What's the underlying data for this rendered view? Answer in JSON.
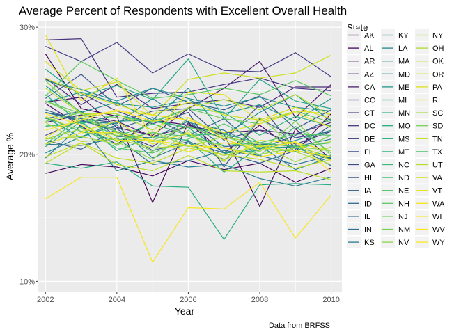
{
  "chart_data": {
    "type": "line",
    "title": "Average Percent of Respondents with Excellent Overall Health",
    "xlabel": "Year",
    "ylabel": "Average %",
    "caption": "Data from BRFSS",
    "x": [
      2002,
      2003,
      2004,
      2005,
      2006,
      2007,
      2008,
      2009,
      2010
    ],
    "xlim": [
      2001.8,
      2010.3
    ],
    "ylim": [
      9.2,
      30.5
    ],
    "x_ticks": [
      2002,
      2004,
      2006,
      2008,
      2010
    ],
    "x_tick_labels": [
      "2002",
      "2004",
      "2006",
      "2008",
      "2010"
    ],
    "y_ticks": [
      10,
      20,
      30
    ],
    "y_tick_labels": [
      "10%",
      "20%",
      "30%"
    ],
    "grid": true,
    "background": "#ebebeb",
    "legend_title": "State",
    "legend_position": "right",
    "palette": "viridis",
    "series": [
      {
        "name": "AK",
        "color": "#440154",
        "values": [
          27.9,
          23.6,
          23.0,
          16.2,
          22.5,
          20.1,
          22.3,
          20.2,
          23.2
        ]
      },
      {
        "name": "AL",
        "color": "#46085c",
        "values": [
          18.5,
          19.2,
          19.0,
          18.3,
          19.5,
          18.8,
          19.3,
          17.8,
          18.9
        ]
      },
      {
        "name": "AR",
        "color": "#471063",
        "values": [
          24.0,
          22.2,
          20.8,
          22.7,
          22.3,
          21.6,
          15.9,
          22.0,
          19.6
        ]
      },
      {
        "name": "AZ",
        "color": "#48186a",
        "values": [
          24.1,
          24.5,
          22.1,
          21.5,
          23.6,
          25.2,
          27.3,
          22.9,
          25.5
        ]
      },
      {
        "name": "CA",
        "color": "#482173",
        "values": [
          22.5,
          23.1,
          22.6,
          21.4,
          22.2,
          21.7,
          21.9,
          21.6,
          22.5
        ]
      },
      {
        "name": "CO",
        "color": "#472a7a",
        "values": [
          26.0,
          23.9,
          25.5,
          23.6,
          24.0,
          24.3,
          23.7,
          25.3,
          25.3
        ]
      },
      {
        "name": "CT",
        "color": "#46337e",
        "values": [
          29.0,
          29.1,
          24.5,
          24.8,
          24.9,
          25.5,
          26.0,
          25.2,
          25.0
        ]
      },
      {
        "name": "DC",
        "color": "#443b84",
        "values": [
          28.5,
          27.3,
          28.8,
          26.4,
          27.9,
          26.6,
          26.5,
          28.0,
          26.1
        ]
      },
      {
        "name": "DE",
        "color": "#414487",
        "values": [
          21.5,
          22.7,
          21.8,
          20.6,
          22.4,
          21.2,
          21.9,
          20.8,
          21.8
        ]
      },
      {
        "name": "FL",
        "color": "#3e4c8a",
        "values": [
          25.9,
          24.8,
          23.4,
          22.4,
          23.3,
          19.0,
          22.8,
          21.3,
          21.8
        ]
      },
      {
        "name": "GA",
        "color": "#3b528b",
        "values": [
          23.3,
          22.8,
          22.5,
          23.4,
          23.6,
          21.1,
          23.9,
          20.4,
          22.3
        ]
      },
      {
        "name": "HI",
        "color": "#375a8c",
        "values": [
          24.4,
          26.3,
          23.8,
          25.2,
          24.1,
          23.5,
          24.6,
          22.0,
          23.5
        ]
      },
      {
        "name": "IA",
        "color": "#33638d",
        "values": [
          21.1,
          20.4,
          22.0,
          20.3,
          21.0,
          20.1,
          19.3,
          20.3,
          19.7
        ]
      },
      {
        "name": "ID",
        "color": "#31688e",
        "values": [
          23.5,
          22.6,
          22.0,
          22.9,
          21.5,
          22.8,
          20.4,
          21.5,
          22.8
        ]
      },
      {
        "name": "IL",
        "color": "#2e6f8e",
        "values": [
          22.8,
          23.4,
          21.4,
          21.3,
          22.6,
          20.6,
          20.8,
          20.7,
          19.1
        ]
      },
      {
        "name": "IN",
        "color": "#2c738e",
        "values": [
          20.8,
          20.7,
          21.3,
          19.2,
          19.5,
          20.3,
          19.9,
          19.2,
          19.9
        ]
      },
      {
        "name": "KS",
        "color": "#297b8e",
        "values": [
          23.3,
          22.6,
          22.4,
          24.4,
          22.5,
          21.9,
          20.5,
          20.6,
          21.2
        ]
      },
      {
        "name": "KY",
        "color": "#27808e",
        "values": [
          19.7,
          22.3,
          18.7,
          19.5,
          19.0,
          19.2,
          18.1,
          17.5,
          18.2
        ]
      },
      {
        "name": "LA",
        "color": "#25858e",
        "values": [
          20.1,
          21.4,
          22.3,
          19.7,
          20.9,
          19.6,
          20.7,
          18.8,
          19.8
        ]
      },
      {
        "name": "MA",
        "color": "#228c8d",
        "values": [
          25.8,
          25.1,
          24.2,
          25.2,
          24.4,
          23.8,
          24.5,
          23.7,
          23.4
        ]
      },
      {
        "name": "MD",
        "color": "#20928c",
        "values": [
          25.4,
          23.3,
          24.1,
          22.7,
          25.2,
          21.5,
          23.3,
          24.7,
          22.6
        ]
      },
      {
        "name": "ME",
        "color": "#1f968b",
        "values": [
          24.1,
          24.9,
          24.0,
          23.7,
          24.3,
          23.2,
          23.9,
          22.6,
          24.4
        ]
      },
      {
        "name": "MI",
        "color": "#1f9e89",
        "values": [
          22.9,
          21.3,
          22.6,
          22.7,
          22.1,
          20.1,
          20.3,
          21.1,
          21.9
        ]
      },
      {
        "name": "MN",
        "color": "#21a585",
        "values": [
          26.7,
          24.6,
          25.4,
          24.3,
          27.5,
          22.8,
          25.9,
          24.2,
          23.6
        ]
      },
      {
        "name": "MO",
        "color": "#24aa83",
        "values": [
          20.6,
          22.6,
          20.3,
          21.4,
          21.1,
          18.6,
          20.6,
          20.5,
          19.6
        ]
      },
      {
        "name": "MS",
        "color": "#28ae80",
        "values": [
          19.3,
          18.9,
          19.4,
          17.5,
          17.4,
          13.3,
          17.6,
          17.7,
          17.6
        ]
      },
      {
        "name": "MT",
        "color": "#2fb47c",
        "values": [
          24.7,
          22.4,
          23.1,
          22.5,
          23.6,
          23.3,
          21.5,
          23.0,
          22.2
        ]
      },
      {
        "name": "NC",
        "color": "#3bbb75",
        "values": [
          20.8,
          22.9,
          21.4,
          22.4,
          21.5,
          21.6,
          20.9,
          20.6,
          19.8
        ]
      },
      {
        "name": "ND",
        "color": "#44bf70",
        "values": [
          22.2,
          22.5,
          20.7,
          22.6,
          22.1,
          21.7,
          19.9,
          22.2,
          20.1
        ]
      },
      {
        "name": "NE",
        "color": "#51c56a",
        "values": [
          22.3,
          22.1,
          20.5,
          20.1,
          21.2,
          22.4,
          20.9,
          21.6,
          21.5
        ]
      },
      {
        "name": "NH",
        "color": "#5ec962",
        "values": [
          24.6,
          27.3,
          25.8,
          24.4,
          24.7,
          25.2,
          24.7,
          25.8,
          24.6
        ]
      },
      {
        "name": "NJ",
        "color": "#6ccd5a",
        "values": [
          24.2,
          23.2,
          22.9,
          22.6,
          23.6,
          22.8,
          22.4,
          23.4,
          22.5
        ]
      },
      {
        "name": "NM",
        "color": "#7ad151",
        "values": [
          24.2,
          22.9,
          21.8,
          21.1,
          22.2,
          21.2,
          20.2,
          22.6,
          19.9
        ]
      },
      {
        "name": "NV",
        "color": "#8bd646",
        "values": [
          25.8,
          23.2,
          21.0,
          19.6,
          21.9,
          19.4,
          22.9,
          20.6,
          20.3
        ]
      },
      {
        "name": "NY",
        "color": "#9bd93c",
        "values": [
          21.2,
          22.0,
          21.5,
          21.0,
          21.6,
          20.5,
          20.0,
          20.5,
          21.0
        ]
      },
      {
        "name": "OH",
        "color": "#addc30",
        "values": [
          22.5,
          21.0,
          21.2,
          20.5,
          20.7,
          19.9,
          20.7,
          20.2,
          19.2
        ]
      },
      {
        "name": "OK",
        "color": "#bddf26",
        "values": [
          19.8,
          20.9,
          19.2,
          18.7,
          19.9,
          18.7,
          18.6,
          18.7,
          18.0
        ]
      },
      {
        "name": "OR",
        "color": "#cde11d",
        "values": [
          27.3,
          25.0,
          25.7,
          23.0,
          25.9,
          26.4,
          26.0,
          26.4,
          27.8
        ]
      },
      {
        "name": "PA",
        "color": "#dde318",
        "values": [
          23.0,
          21.8,
          22.6,
          20.8,
          21.7,
          19.5,
          21.1,
          20.9,
          20.3
        ]
      },
      {
        "name": "RI",
        "color": "#eae51a",
        "values": [
          20.8,
          21.7,
          21.7,
          21.1,
          20.2,
          20.9,
          20.6,
          20.9,
          19.5
        ]
      },
      {
        "name": "SC",
        "color": "#a0da39",
        "values": [
          21.2,
          21.4,
          20.8,
          21.8,
          20.6,
          21.4,
          20.8,
          19.4,
          20.6
        ]
      },
      {
        "name": "SD",
        "color": "#73d056",
        "values": [
          22.6,
          23.3,
          21.7,
          20.2,
          22.9,
          21.4,
          20.5,
          20.2,
          21.5
        ]
      },
      {
        "name": "TN",
        "color": "#c2df23",
        "values": [
          19.3,
          20.9,
          19.7,
          19.3,
          20.5,
          20.0,
          19.6,
          18.9,
          19.6
        ]
      },
      {
        "name": "TX",
        "color": "#4ac16d",
        "values": [
          22.9,
          21.8,
          21.1,
          21.7,
          21.4,
          20.7,
          20.9,
          20.6,
          20.9
        ]
      },
      {
        "name": "UT",
        "color": "#b5de2b",
        "values": [
          25.2,
          23.2,
          23.2,
          21.9,
          23.7,
          24.3,
          23.5,
          24.7,
          23.0
        ]
      },
      {
        "name": "VA",
        "color": "#d2e21b",
        "values": [
          26.0,
          24.8,
          23.9,
          23.1,
          24.1,
          23.1,
          22.7,
          23.7,
          22.8
        ]
      },
      {
        "name": "VT",
        "color": "#e5e419",
        "values": [
          29.4,
          24.2,
          26.0,
          21.3,
          24.9,
          24.7,
          22.6,
          23.4,
          23.2
        ]
      },
      {
        "name": "WA",
        "color": "#f1e51d",
        "values": [
          21.3,
          23.0,
          23.4,
          23.1,
          22.7,
          21.7,
          22.4,
          23.3,
          22.1
        ]
      },
      {
        "name": "WI",
        "color": "#f5e61f",
        "values": [
          23.2,
          22.3,
          21.1,
          21.1,
          20.7,
          20.5,
          19.8,
          20.3,
          19.8
        ]
      },
      {
        "name": "WV",
        "color": "#f8e621",
        "values": [
          16.5,
          18.2,
          18.2,
          11.5,
          15.8,
          15.7,
          17.8,
          13.4,
          16.8
        ]
      },
      {
        "name": "WY",
        "color": "#fde725",
        "values": [
          21.9,
          22.7,
          23.5,
          22.6,
          22.9,
          21.2,
          20.3,
          21.0,
          18.6
        ]
      }
    ]
  }
}
